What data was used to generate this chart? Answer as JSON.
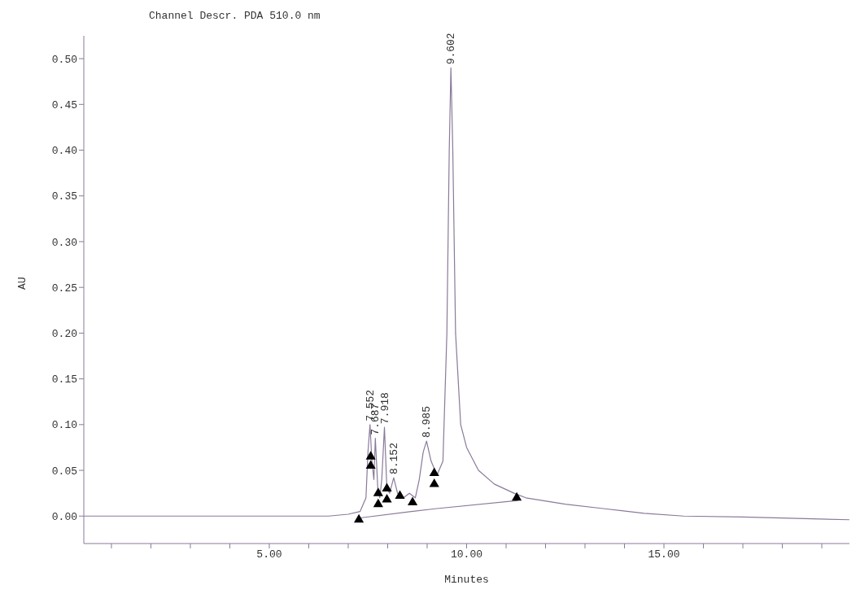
{
  "chart_data": {
    "type": "line",
    "title": "Channel Descr.  PDA 510.0 nm",
    "xlabel": "Minutes",
    "ylabel": "AU",
    "xlim": [
      0.3,
      19.7
    ],
    "ylim": [
      -0.03,
      0.525
    ],
    "xticks": [
      {
        "value": 1,
        "label": null
      },
      {
        "value": 2,
        "label": null
      },
      {
        "value": 3,
        "label": null
      },
      {
        "value": 4,
        "label": null
      },
      {
        "value": 5,
        "label": "5.00"
      },
      {
        "value": 6,
        "label": null
      },
      {
        "value": 7,
        "label": null
      },
      {
        "value": 8,
        "label": null
      },
      {
        "value": 9,
        "label": null
      },
      {
        "value": 10,
        "label": "10.00"
      },
      {
        "value": 11,
        "label": null
      },
      {
        "value": 12,
        "label": null
      },
      {
        "value": 13,
        "label": null
      },
      {
        "value": 14,
        "label": null
      },
      {
        "value": 15,
        "label": "15.00"
      },
      {
        "value": 16,
        "label": null
      },
      {
        "value": 17,
        "label": null
      },
      {
        "value": 18,
        "label": null
      },
      {
        "value": 19,
        "label": null
      }
    ],
    "yticks": [
      {
        "value": 0,
        "label": "0.00"
      },
      {
        "value": 0.05,
        "label": "0.05"
      },
      {
        "value": 0.1,
        "label": "0.10"
      },
      {
        "value": 0.15,
        "label": "0.15"
      },
      {
        "value": 0.2,
        "label": "0.20"
      },
      {
        "value": 0.25,
        "label": "0.25"
      },
      {
        "value": 0.3,
        "label": "0.30"
      },
      {
        "value": 0.35,
        "label": "0.35"
      },
      {
        "value": 0.4,
        "label": "0.40"
      },
      {
        "value": 0.45,
        "label": "0.45"
      },
      {
        "value": 0.5,
        "label": "0.50"
      }
    ],
    "grid": false,
    "legend": false,
    "line_style": "solid",
    "marker": "none",
    "series": [
      {
        "color": "#8a7a9a",
        "x": [
          0.3,
          6.5,
          7.0,
          7.3,
          7.45,
          7.5,
          7.552,
          7.6,
          7.65,
          7.687,
          7.75,
          7.8,
          7.85,
          7.918,
          7.98,
          8.05,
          8.152,
          8.25,
          8.4,
          8.55,
          8.7,
          8.8,
          8.9,
          8.985,
          9.1,
          9.25,
          9.4,
          9.5,
          9.56,
          9.602,
          9.65,
          9.72,
          9.85,
          10.0,
          10.3,
          10.7,
          11.2,
          11.5,
          12.5,
          13.5,
          14.5,
          15.5,
          17.0,
          19.7
        ],
        "values": [
          0,
          0,
          0.002,
          0.005,
          0.02,
          0.07,
          0.1,
          0.06,
          0.04,
          0.085,
          0.03,
          0.02,
          0.04,
          0.097,
          0.03,
          0.025,
          0.042,
          0.025,
          0.02,
          0.025,
          0.02,
          0.04,
          0.07,
          0.082,
          0.06,
          0.045,
          0.06,
          0.2,
          0.4,
          0.49,
          0.4,
          0.2,
          0.1,
          0.075,
          0.05,
          0.035,
          0.025,
          0.02,
          0.013,
          0.008,
          0.003,
          0,
          -0.001,
          -0.004
        ]
      },
      {
        "color": "#8a7a9a",
        "x": [
          7.3,
          8.6,
          9.2,
          11.3
        ],
        "values": [
          -0.002,
          0.005,
          0.008,
          0.017
        ]
      },
      {
        "type": "scatter",
        "marker": "triangle",
        "color": "#000000",
        "x": [
          7.27,
          7.57,
          7.76,
          7.98,
          8.63,
          9.18
        ],
        "values": [
          -0.004,
          0.055,
          0.013,
          0.018,
          0.015,
          0.035
        ]
      },
      {
        "type": "scatter",
        "marker": "triangle",
        "color": "#000000",
        "x": [
          7.57,
          7.76,
          7.98,
          8.31,
          9.18,
          11.27
        ],
        "values": [
          0.065,
          0.025,
          0.03,
          0.022,
          0.047,
          0.02
        ]
      }
    ],
    "annotations": [
      {
        "text": "7.552",
        "x": 7.552,
        "y": 0.1
      },
      {
        "text": "7.687",
        "x": 7.687,
        "y": 0.085
      },
      {
        "text": "7.918",
        "x": 7.918,
        "y": 0.097
      },
      {
        "text": "8.152",
        "x": 8.152,
        "y": 0.042
      },
      {
        "text": "8.985",
        "x": 8.985,
        "y": 0.082
      },
      {
        "text": "9.602",
        "x": 9.602,
        "y": 0.49
      }
    ]
  }
}
